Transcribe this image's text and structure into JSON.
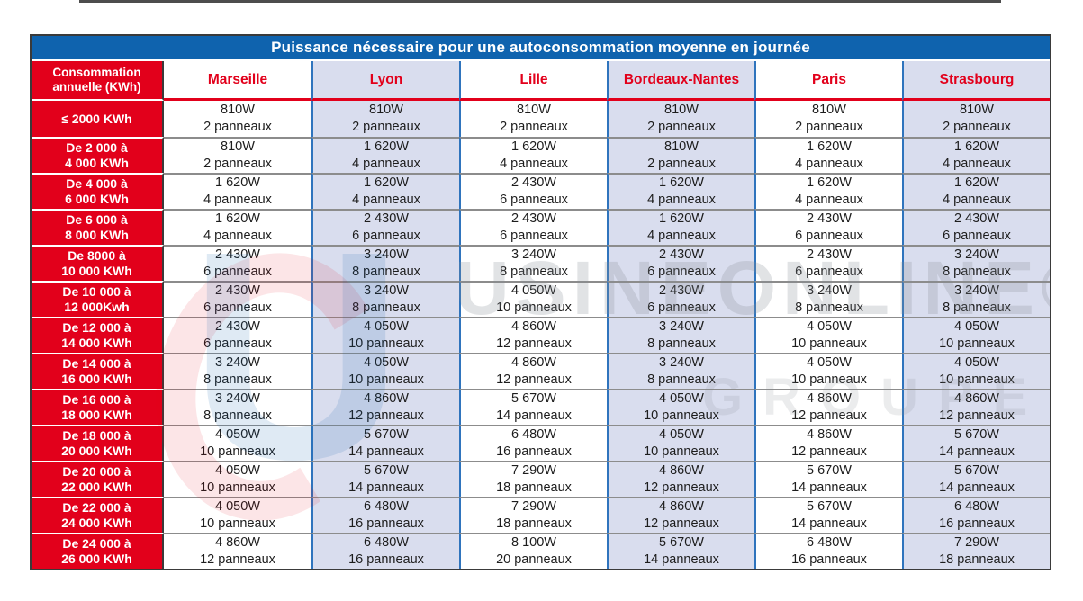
{
  "title": "Puissance nécessaire pour une autoconsommation moyenne en journée",
  "table": {
    "corner": "Consommation\nannuelle (KWh)",
    "columns": [
      "Marseille",
      "Lyon",
      "Lille",
      "Bordeaux-Nantes",
      "Paris",
      "Strasbourg"
    ],
    "rows": [
      {
        "label": "≤ 2000 KWh",
        "cells": [
          {
            "power": "810W",
            "panels": "2 panneaux"
          },
          {
            "power": "810W",
            "panels": "2 panneaux"
          },
          {
            "power": "810W",
            "panels": "2 panneaux"
          },
          {
            "power": "810W",
            "panels": "2 panneaux"
          },
          {
            "power": "810W",
            "panels": "2 panneaux"
          },
          {
            "power": "810W",
            "panels": "2 panneaux"
          }
        ]
      },
      {
        "label": "De 2 000 à\n4 000 KWh",
        "cells": [
          {
            "power": "810W",
            "panels": "2 panneaux"
          },
          {
            "power": "1 620W",
            "panels": "4 panneaux"
          },
          {
            "power": "1 620W",
            "panels": "4 panneaux"
          },
          {
            "power": "810W",
            "panels": "2 panneaux"
          },
          {
            "power": "1 620W",
            "panels": "4 panneaux"
          },
          {
            "power": "1 620W",
            "panels": "4 panneaux"
          }
        ]
      },
      {
        "label": "De 4 000 à\n6 000 KWh",
        "cells": [
          {
            "power": "1 620W",
            "panels": "4 panneaux"
          },
          {
            "power": "1 620W",
            "panels": "4 panneaux"
          },
          {
            "power": "2 430W",
            "panels": "6 panneaux"
          },
          {
            "power": "1 620W",
            "panels": "4 panneaux"
          },
          {
            "power": "1 620W",
            "panels": "4 panneaux"
          },
          {
            "power": "1 620W",
            "panels": "4 panneaux"
          }
        ]
      },
      {
        "label": "De 6 000 à\n8 000 KWh",
        "cells": [
          {
            "power": "1 620W",
            "panels": "4 panneaux"
          },
          {
            "power": "2 430W",
            "panels": "6 panneaux"
          },
          {
            "power": "2 430W",
            "panels": "6 panneaux"
          },
          {
            "power": "1 620W",
            "panels": "4 panneaux"
          },
          {
            "power": "2 430W",
            "panels": "6 panneaux"
          },
          {
            "power": "2 430W",
            "panels": "6 panneaux"
          }
        ]
      },
      {
        "label": "De 8000 à\n10 000 KWh",
        "cells": [
          {
            "power": "2 430W",
            "panels": "6 panneaux"
          },
          {
            "power": "3 240W",
            "panels": "8 panneaux"
          },
          {
            "power": "3 240W",
            "panels": "8 panneaux"
          },
          {
            "power": "2 430W",
            "panels": "6 panneaux"
          },
          {
            "power": "2 430W",
            "panels": "6 panneaux"
          },
          {
            "power": "3 240W",
            "panels": "8 panneaux"
          }
        ]
      },
      {
        "label": "De 10 000 à\n12 000Kwh",
        "cells": [
          {
            "power": "2 430W",
            "panels": "6 panneaux"
          },
          {
            "power": "3 240W",
            "panels": "8 panneaux"
          },
          {
            "power": "4 050W",
            "panels": "10 panneaux"
          },
          {
            "power": "2 430W",
            "panels": "6 panneaux"
          },
          {
            "power": "3 240W",
            "panels": "8 panneaux"
          },
          {
            "power": "3 240W",
            "panels": "8 panneaux"
          }
        ]
      },
      {
        "label": "De 12 000 à\n14 000 KWh",
        "cells": [
          {
            "power": "2 430W",
            "panels": "6 panneaux"
          },
          {
            "power": "4 050W",
            "panels": "10 panneaux"
          },
          {
            "power": "4 860W",
            "panels": "12 panneaux"
          },
          {
            "power": "3 240W",
            "panels": "8 panneaux"
          },
          {
            "power": "4 050W",
            "panels": "10 panneaux"
          },
          {
            "power": "4 050W",
            "panels": "10 panneaux"
          }
        ]
      },
      {
        "label": "De 14 000 à\n16 000 KWh",
        "cells": [
          {
            "power": "3 240W",
            "panels": "8 panneaux"
          },
          {
            "power": "4 050W",
            "panels": "10 panneaux"
          },
          {
            "power": "4 860W",
            "panels": "12 panneaux"
          },
          {
            "power": "3 240W",
            "panels": "8 panneaux"
          },
          {
            "power": "4 050W",
            "panels": "10 panneaux"
          },
          {
            "power": "4 050W",
            "panels": "10 panneaux"
          }
        ]
      },
      {
        "label": "De 16 000 à\n18 000 KWh",
        "cells": [
          {
            "power": "3 240W",
            "panels": "8 panneaux"
          },
          {
            "power": "4 860W",
            "panels": "12 panneaux"
          },
          {
            "power": "5 670W",
            "panels": "14 panneaux"
          },
          {
            "power": "4 050W",
            "panels": "10 panneaux"
          },
          {
            "power": "4 860W",
            "panels": "12 panneaux"
          },
          {
            "power": "4 860W",
            "panels": "12 panneaux"
          }
        ]
      },
      {
        "label": "De 18 000 à\n20 000 KWh",
        "cells": [
          {
            "power": "4 050W",
            "panels": "10 panneaux"
          },
          {
            "power": "5 670W",
            "panels": "14 panneaux"
          },
          {
            "power": "6 480W",
            "panels": "16 panneaux"
          },
          {
            "power": "4 050W",
            "panels": "10 panneaux"
          },
          {
            "power": "4 860W",
            "panels": "12 panneaux"
          },
          {
            "power": "5 670W",
            "panels": "14 panneaux"
          }
        ]
      },
      {
        "label": "De 20 000 à\n22 000 KWh",
        "cells": [
          {
            "power": "4 050W",
            "panels": "10 panneaux"
          },
          {
            "power": "5 670W",
            "panels": "14 panneaux"
          },
          {
            "power": "7 290W",
            "panels": "18 panneaux"
          },
          {
            "power": "4 860W",
            "panels": "12 panneaux"
          },
          {
            "power": "5 670W",
            "panels": "14 panneaux"
          },
          {
            "power": "5 670W",
            "panels": "14 panneaux"
          }
        ]
      },
      {
        "label": "De 22 000 à\n24 000 KWh",
        "cells": [
          {
            "power": "4 050W",
            "panels": "10 panneaux"
          },
          {
            "power": "6 480W",
            "panels": "16 panneaux"
          },
          {
            "power": "7 290W",
            "panels": "18 panneaux"
          },
          {
            "power": "4 860W",
            "panels": "12 panneaux"
          },
          {
            "power": "5 670W",
            "panels": "14 panneaux"
          },
          {
            "power": "6 480W",
            "panels": "16 panneaux"
          }
        ]
      },
      {
        "label": "De 24 000 à\n26 000 KWh",
        "cells": [
          {
            "power": "4 860W",
            "panels": "12 panneaux"
          },
          {
            "power": "6 480W",
            "panels": "16 panneaux"
          },
          {
            "power": "8 100W",
            "panels": "20 panneaux"
          },
          {
            "power": "5 670W",
            "panels": "14 panneaux"
          },
          {
            "power": "6 480W",
            "panels": "16 panneaux"
          },
          {
            "power": "7 290W",
            "panels": "18 panneaux"
          }
        ]
      }
    ]
  },
  "watermark": {
    "logo_letter": "U",
    "text": "USINEONLINE®",
    "subtext": "GROUPE"
  },
  "colors": {
    "blue": "#0f63ae",
    "red": "#e2001b",
    "lavender": "#d9ddee",
    "row_line": "#8c8c8c",
    "col_line": "#2f74bd",
    "border": "#3a3a3a",
    "cell_text": "#1d1d1d",
    "title_text": "#ffffff"
  },
  "chart_data": {
    "type": "table",
    "title": "Puissance nécessaire pour une autoconsommation moyenne en journée",
    "row_header": "Consommation annuelle (KWh)",
    "columns": [
      "Marseille",
      "Lyon",
      "Lille",
      "Bordeaux-Nantes",
      "Paris",
      "Strasbourg"
    ],
    "units": {
      "power": "W",
      "panels": "panneaux"
    },
    "rows": [
      {
        "consommation": "≤ 2000 KWh",
        "power_w": [
          810,
          810,
          810,
          810,
          810,
          810
        ],
        "panneaux": [
          2,
          2,
          2,
          2,
          2,
          2
        ]
      },
      {
        "consommation": "De 2 000 à 4 000 KWh",
        "power_w": [
          810,
          1620,
          1620,
          810,
          1620,
          1620
        ],
        "panneaux": [
          2,
          4,
          4,
          2,
          4,
          4
        ]
      },
      {
        "consommation": "De 4 000 à 6 000 KWh",
        "power_w": [
          1620,
          1620,
          2430,
          1620,
          1620,
          1620
        ],
        "panneaux": [
          4,
          4,
          6,
          4,
          4,
          4
        ]
      },
      {
        "consommation": "De 6 000 à 8 000 KWh",
        "power_w": [
          1620,
          2430,
          2430,
          1620,
          2430,
          2430
        ],
        "panneaux": [
          4,
          6,
          6,
          4,
          6,
          6
        ]
      },
      {
        "consommation": "De 8000 à 10 000 KWh",
        "power_w": [
          2430,
          3240,
          3240,
          2430,
          2430,
          3240
        ],
        "panneaux": [
          6,
          8,
          8,
          6,
          6,
          8
        ]
      },
      {
        "consommation": "De 10 000 à 12 000Kwh",
        "power_w": [
          2430,
          3240,
          4050,
          2430,
          3240,
          3240
        ],
        "panneaux": [
          6,
          8,
          10,
          6,
          8,
          8
        ]
      },
      {
        "consommation": "De 12 000 à 14 000 KWh",
        "power_w": [
          2430,
          4050,
          4860,
          3240,
          4050,
          4050
        ],
        "panneaux": [
          6,
          10,
          12,
          8,
          10,
          10
        ]
      },
      {
        "consommation": "De 14 000 à 16 000 KWh",
        "power_w": [
          3240,
          4050,
          4860,
          3240,
          4050,
          4050
        ],
        "panneaux": [
          8,
          10,
          12,
          8,
          10,
          10
        ]
      },
      {
        "consommation": "De 16 000 à 18 000 KWh",
        "power_w": [
          3240,
          4860,
          5670,
          4050,
          4860,
          4860
        ],
        "panneaux": [
          8,
          12,
          14,
          10,
          12,
          12
        ]
      },
      {
        "consommation": "De 18 000 à 20 000 KWh",
        "power_w": [
          4050,
          5670,
          6480,
          4050,
          4860,
          5670
        ],
        "panneaux": [
          10,
          14,
          16,
          10,
          12,
          14
        ]
      },
      {
        "consommation": "De 20 000 à 22 000 KWh",
        "power_w": [
          4050,
          5670,
          7290,
          4860,
          5670,
          5670
        ],
        "panneaux": [
          10,
          14,
          18,
          12,
          14,
          14
        ]
      },
      {
        "consommation": "De 22 000 à 24 000 KWh",
        "power_w": [
          4050,
          6480,
          7290,
          4860,
          5670,
          6480
        ],
        "panneaux": [
          10,
          16,
          18,
          12,
          14,
          16
        ]
      },
      {
        "consommation": "De 24 000 à 26 000 KWh",
        "power_w": [
          4860,
          6480,
          8100,
          5670,
          6480,
          7290
        ],
        "panneaux": [
          12,
          16,
          20,
          14,
          16,
          18
        ]
      }
    ]
  }
}
